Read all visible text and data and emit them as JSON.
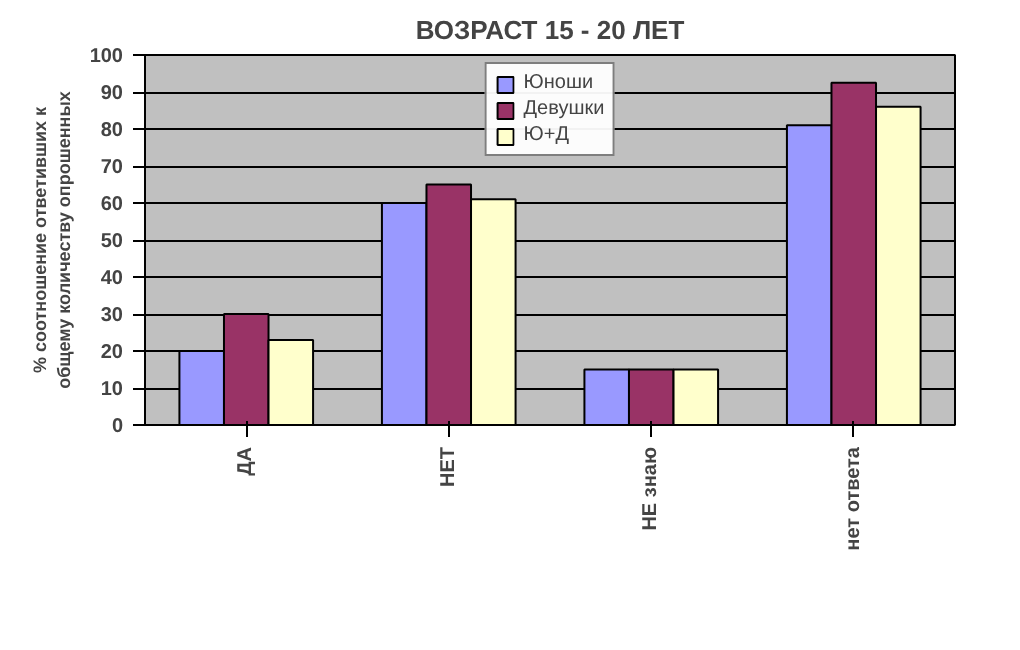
{
  "chart_data": {
    "type": "bar",
    "title": "ВОЗРАСТ 15 - 20 ЛЕТ",
    "ylabel": "% соотношение ответивших к общему количеству опрошенных",
    "categories": [
      "ДА",
      "НЕТ",
      "НЕ знаю",
      "нет ответа"
    ],
    "series": [
      {
        "name": "Юноши",
        "color": "#9999ff",
        "values": [
          20,
          60,
          15,
          81
        ]
      },
      {
        "name": "Девушки",
        "color": "#993366",
        "values": [
          30,
          65,
          15,
          92.5
        ]
      },
      {
        "name": "Ю+Д",
        "color": "#ffffcc",
        "values": [
          23,
          61,
          15,
          86
        ]
      }
    ],
    "ylim": [
      0,
      100
    ],
    "yticks": [
      0,
      10,
      20,
      30,
      40,
      50,
      60,
      70,
      80,
      90,
      100
    ],
    "grid": "y",
    "legend": "top right"
  }
}
